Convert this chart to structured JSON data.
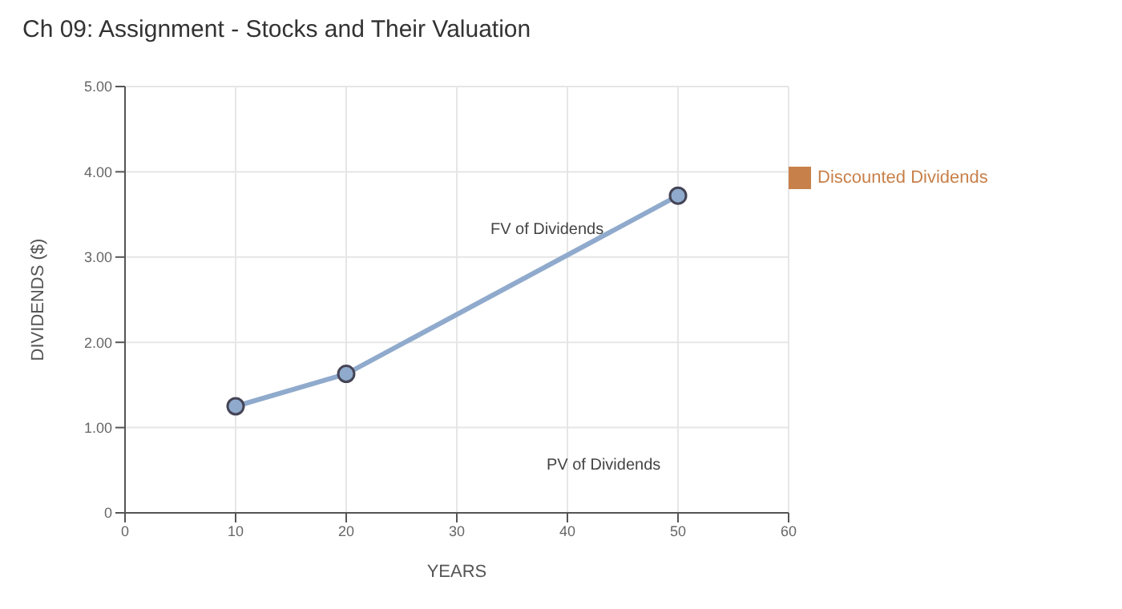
{
  "chart_data": {
    "type": "line",
    "title": "Ch 09: Assignment - Stocks and Their Valuation",
    "xlabel": "YEARS",
    "ylabel": "DIVIDENDS ($)",
    "x": [
      10,
      20,
      50
    ],
    "series": [
      {
        "color": "#8faacc",
        "values": [
          1.25,
          1.63,
          3.72
        ]
      },
      {
        "name": "Discounted Dividends",
        "color": "#c8804a",
        "values": [
          null,
          null,
          null
        ]
      }
    ],
    "xlim": [
      0,
      60
    ],
    "xticks": [
      0,
      10,
      20,
      30,
      40,
      50,
      60
    ],
    "ylim": [
      0,
      5
    ],
    "yticks": [
      {
        "value": 0,
        "label": "0"
      },
      {
        "value": 1,
        "label": "1.00"
      },
      {
        "value": 2,
        "label": "2.00"
      },
      {
        "value": 3,
        "label": "3.00"
      },
      {
        "value": 4,
        "label": "4.00"
      },
      {
        "value": 5,
        "label": "5.00"
      }
    ],
    "annotations": [
      "FV of Dividends",
      "PV of Dividends"
    ],
    "grid": true,
    "legend": "right",
    "marker": "circle",
    "line_style": "solid"
  }
}
